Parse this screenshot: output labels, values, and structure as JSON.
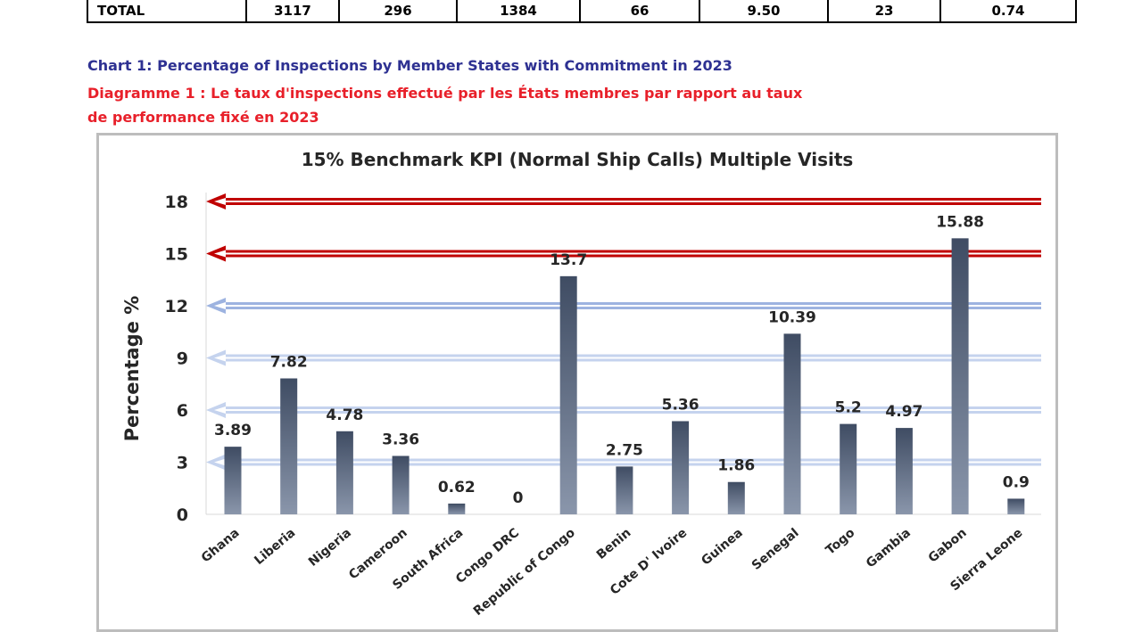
{
  "table_total_row": {
    "label": "TOTAL",
    "cells": [
      "3117",
      "296",
      "1384",
      "66",
      "9.50",
      "23",
      "0.74"
    ]
  },
  "captions": {
    "english": "Chart 1: Percentage of Inspections by Member States with Commitment in 2023",
    "french_line1": "Diagramme 1 : Le taux d'inspections effectué par les États membres par rapport au taux",
    "french_line2": "de performance  fixé en 2023"
  },
  "chart_data": {
    "type": "bar",
    "title": "15% Benchmark KPI (Normal Ship Calls) Multiple Visits",
    "xlabel": "",
    "ylabel": "Percentage %",
    "ylim": [
      0,
      18
    ],
    "yticks": [
      "0",
      "3",
      "6",
      "9",
      "12",
      "15",
      "18"
    ],
    "grid": false,
    "legend": "none",
    "categories": [
      "Ghana",
      "Liberia",
      "Nigeria",
      "Cameroon",
      "South Africa",
      "Congo DRC",
      "Republic of Congo",
      "Benin",
      "Cote D' Ivoire",
      "Guinea",
      "Senegal",
      "Togo",
      "Gambia",
      "Gabon",
      "Sierra Leone"
    ],
    "values": [
      3.89,
      7.82,
      4.78,
      3.36,
      0.62,
      0,
      13.7,
      2.75,
      5.36,
      1.86,
      10.39,
      5.2,
      4.97,
      15.88,
      0.9
    ],
    "value_labels": [
      "3.89",
      "7.82",
      "4.78",
      "3.36",
      "0.62",
      "0",
      "13.7",
      "2.75",
      "5.36",
      "1.86",
      "10.39",
      "5.2",
      "4.97",
      "15.88",
      "0.9"
    ],
    "benchmark_arrows": [
      {
        "value": 18,
        "color": "#c00000"
      },
      {
        "value": 15,
        "color": "#c00000"
      },
      {
        "value": 12,
        "color": "#9db3e0"
      },
      {
        "value": 9,
        "color": "#c5d3ee"
      },
      {
        "value": 6,
        "color": "#c5d3ee"
      },
      {
        "value": 3,
        "color": "#c5d3ee"
      }
    ],
    "colors": {
      "bar_top": "#3f4c63",
      "bar_bottom": "#8a96ab",
      "text": "#262626"
    }
  }
}
